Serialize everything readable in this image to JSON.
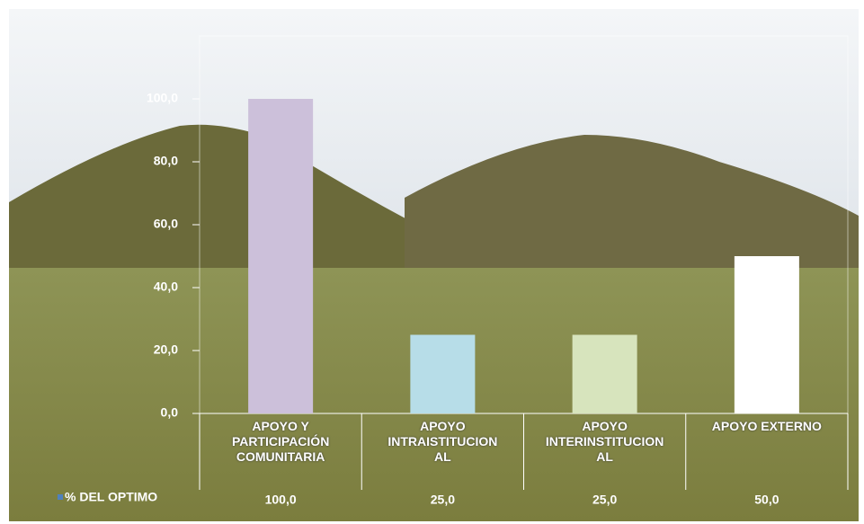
{
  "chart_data": {
    "type": "bar",
    "categories": [
      "APOYO Y PARTICIPACIÓN COMUNITARIA",
      "APOYO INTRAISTITUCIONAL",
      "APOYO INTERINSTITUCIONAL",
      "APOYO EXTERNO"
    ],
    "series": [
      {
        "name": "% DEL OPTIMO",
        "color": "#4f81bd",
        "values": [
          100,
          25,
          25,
          50
        ],
        "value_labels": [
          "100,0",
          "25,0",
          "25,0",
          "50,0"
        ],
        "colors": [
          "#ccc0da",
          "#b7dde8",
          "#d7e4bd",
          "#ffffff"
        ]
      }
    ],
    "ylim": [
      0,
      120
    ],
    "yticks": [
      {
        "value": 0,
        "label": "0,0"
      },
      {
        "value": 20,
        "label": "20,0"
      },
      {
        "value": 40,
        "label": "40,0"
      },
      {
        "value": 60,
        "label": "60,0"
      },
      {
        "value": 80,
        "label": "80,0"
      },
      {
        "value": 100,
        "label": "100,0"
      }
    ],
    "grid": false
  }
}
